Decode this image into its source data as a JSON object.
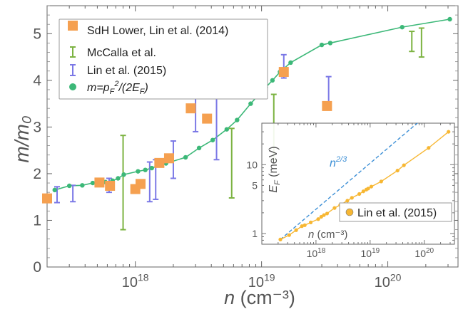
{
  "chart_data": [
    {
      "type": "scatter",
      "xlabel": "n (cm⁻³)",
      "ylabel": "m/m₀",
      "xscale": "log",
      "xlim": [
        2e+17,
        3.6e+20
      ],
      "ylim": [
        0,
        5.6
      ],
      "xticks": [
        {
          "value": 1e+18,
          "label": "10^18"
        },
        {
          "value": 1e+19,
          "label": "10^19"
        },
        {
          "value": 1e+20,
          "label": "10^20"
        }
      ],
      "yticks": [
        0,
        1,
        2,
        3,
        4,
        5
      ],
      "legend_position": "top-left",
      "colors": {
        "sdh": "#f5a050",
        "mccalla": "#7cb342",
        "lin": "#7b78e6",
        "model": "#3cb878"
      },
      "series": [
        {
          "name": "SdH Lower, Lin et al. (2014)",
          "marker": "square",
          "points": [
            {
              "x": 2e+17,
              "y": 1.47
            },
            {
              "x": 5.2e+17,
              "y": 1.81
            },
            {
              "x": 6.3e+17,
              "y": 1.74
            },
            {
              "x": 1e+18,
              "y": 1.67
            },
            {
              "x": 1.1e+18,
              "y": 1.78
            },
            {
              "x": 1.55e+18,
              "y": 2.23
            },
            {
              "x": 1.85e+18,
              "y": 2.33
            },
            {
              "x": 2.75e+18,
              "y": 3.4
            },
            {
              "x": 3.7e+18,
              "y": 3.18
            },
            {
              "x": 1.5e+19,
              "y": 4.18
            },
            {
              "x": 3.3e+19,
              "y": 3.45
            }
          ]
        },
        {
          "name": "McCalla et al.",
          "marker": "errorbar",
          "points": [
            {
              "x": 8e+17,
              "low": 0.8,
              "high": 2.82
            },
            {
              "x": 5.8e+18,
              "low": 1.48,
              "high": 2.97
            },
            {
              "x": 1.25e+19,
              "low": 2.3,
              "high": 3.7
            },
            {
              "x": 1.55e+20,
              "low": 4.62,
              "high": 5.05
            },
            {
              "x": 1.85e+20,
              "low": 4.5,
              "high": 5.12
            }
          ]
        },
        {
          "name": "Lin et al. (2015)",
          "marker": "errorbar",
          "points": [
            {
              "x": 2.4e+17,
              "low": 1.38,
              "high": 1.72
            },
            {
              "x": 3.2e+17,
              "low": 1.4,
              "high": 1.75
            },
            {
              "x": 6.2e+17,
              "low": 1.6,
              "high": 1.9
            },
            {
              "x": 1.3e+18,
              "low": 1.4,
              "high": 2.25
            },
            {
              "x": 1.45e+18,
              "low": 1.45,
              "high": 2.3
            },
            {
              "x": 2e+18,
              "low": 1.9,
              "high": 2.7
            },
            {
              "x": 3e+18,
              "low": 2.9,
              "high": 3.8
            },
            {
              "x": 4.4e+18,
              "low": 2.3,
              "high": 4.4
            },
            {
              "x": 1.5e+19,
              "low": 4.05,
              "high": 4.55
            },
            {
              "x": 3.4e+19,
              "low": 3.38,
              "high": 4.08
            }
          ]
        },
        {
          "name": "m=p_F^2/(2E_F)",
          "marker": "circle-line",
          "points": [
            {
              "x": 2.3e+17,
              "y": 1.65
            },
            {
              "x": 3e+17,
              "y": 1.74
            },
            {
              "x": 3.8e+17,
              "y": 1.75
            },
            {
              "x": 4.6e+17,
              "y": 1.8
            },
            {
              "x": 5.8e+17,
              "y": 1.82
            },
            {
              "x": 6.6e+17,
              "y": 1.85
            },
            {
              "x": 7.3e+17,
              "y": 1.9
            },
            {
              "x": 8.1e+17,
              "y": 1.98
            },
            {
              "x": 1.05e+18,
              "y": 2.05
            },
            {
              "x": 1.2e+18,
              "y": 2.08
            },
            {
              "x": 1.35e+18,
              "y": 2.12
            },
            {
              "x": 1.55e+18,
              "y": 2.18
            },
            {
              "x": 1.75e+18,
              "y": 2.22
            },
            {
              "x": 2.5e+18,
              "y": 2.35
            },
            {
              "x": 3.2e+18,
              "y": 2.55
            },
            {
              "x": 4.1e+18,
              "y": 2.72
            },
            {
              "x": 5.3e+18,
              "y": 2.95
            },
            {
              "x": 6.4e+18,
              "y": 3.15
            },
            {
              "x": 8.2e+18,
              "y": 3.5
            },
            {
              "x": 9.7e+18,
              "y": 3.72
            },
            {
              "x": 1.08e+19,
              "y": 3.85
            },
            {
              "x": 1.22e+19,
              "y": 4.0
            },
            {
              "x": 1.4e+19,
              "y": 4.18
            },
            {
              "x": 1.7e+19,
              "y": 4.38
            },
            {
              "x": 3e+19,
              "y": 4.76
            },
            {
              "x": 3.5e+19,
              "y": 4.8
            },
            {
              "x": 1.3e+20,
              "y": 5.14
            },
            {
              "x": 3.1e+20,
              "y": 5.31
            }
          ]
        }
      ]
    },
    {
      "type": "line",
      "inset": true,
      "xlabel": "n (cm⁻³)",
      "ylabel": "E_F (meV)",
      "xscale": "log",
      "yscale": "log",
      "xlim": [
        1e+17,
        3.6e+20
      ],
      "ylim": [
        0.7,
        40
      ],
      "xticks": [
        {
          "value": 1e+18,
          "label": "10^18"
        },
        {
          "value": 1e+19,
          "label": "10^19"
        },
        {
          "value": 1e+20,
          "label": "10^20"
        }
      ],
      "yticks": [
        1,
        5,
        10
      ],
      "annotation": "n^2/3",
      "legend_position": "bottom-right",
      "colors": {
        "data": "#f7b733",
        "guide": "#3c8fd6"
      },
      "series": [
        {
          "name": "Lin et al. (2015)",
          "marker": "circle-line",
          "points": [
            {
              "x": 2.2e+17,
              "y": 0.82
            },
            {
              "x": 3.2e+17,
              "y": 0.95
            },
            {
              "x": 4.3e+17,
              "y": 1.12
            },
            {
              "x": 5.5e+17,
              "y": 1.28
            },
            {
              "x": 6.2e+17,
              "y": 1.32
            },
            {
              "x": 8e+17,
              "y": 1.45
            },
            {
              "x": 1.1e+18,
              "y": 1.62
            },
            {
              "x": 1.25e+18,
              "y": 1.75
            },
            {
              "x": 1.4e+18,
              "y": 1.85
            },
            {
              "x": 1.6e+18,
              "y": 1.95
            },
            {
              "x": 2.2e+18,
              "y": 2.35
            },
            {
              "x": 2.8e+18,
              "y": 2.6
            },
            {
              "x": 3.8e+18,
              "y": 3.0
            },
            {
              "x": 4.6e+18,
              "y": 3.3
            },
            {
              "x": 6.3e+18,
              "y": 3.75
            },
            {
              "x": 7.5e+18,
              "y": 4.1
            },
            {
              "x": 8.5e+18,
              "y": 4.35
            },
            {
              "x": 9.2e+18,
              "y": 4.5
            },
            {
              "x": 1.05e+19,
              "y": 4.8
            },
            {
              "x": 1.6e+19,
              "y": 5.7
            },
            {
              "x": 3.2e+19,
              "y": 8.2
            },
            {
              "x": 4.2e+19,
              "y": 9.8
            },
            {
              "x": 1.2e+20,
              "y": 17.5
            },
            {
              "x": 2.8e+20,
              "y": 30.0
            }
          ]
        },
        {
          "name": "n^2/3",
          "marker": "dashed-line",
          "points": [
            {
              "x": 2.2e+17,
              "y": 0.82
            },
            {
              "x": 3.5e+20,
              "y": 113
            }
          ]
        }
      ]
    }
  ]
}
